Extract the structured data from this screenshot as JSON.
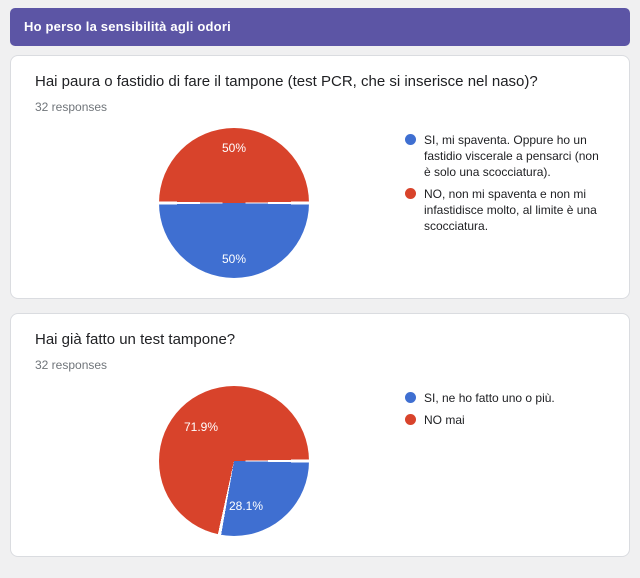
{
  "page": {
    "background_color": "#f0f0f1",
    "accent_color": "#5c55a5"
  },
  "header": {
    "title": "Ho perso la sensibilità agli odori"
  },
  "questions": [
    {
      "title": "Hai paura o fastidio di fare il tampone (test PCR, che si inserisce nel naso)?",
      "responses_label": "32 responses",
      "legend": [
        {
          "color": "#3f6fd1",
          "label": "SI, mi spaventa. Oppure ho un fastidio viscerale a pensarci (non è solo una scocciatura)."
        },
        {
          "color": "#d8432b",
          "label": "NO, non mi spaventa e non mi infastidisce molto, al limite è una scocciatura."
        }
      ]
    },
    {
      "title": "Hai già fatto un test tampone?",
      "responses_label": "32 responses",
      "legend": [
        {
          "color": "#3f6fd1",
          "label": "SI, ne ho fatto uno o più."
        },
        {
          "color": "#d8432b",
          "label": "NO mai"
        }
      ]
    }
  ],
  "chart_data": [
    {
      "type": "pie",
      "title": "Hai paura o fastidio di fare il tampone (test PCR, che si inserisce nel naso)?",
      "labels": [
        "SI, mi spaventa. Oppure ho un fastidio viscerale a pensarci (non è solo una scocciatura).",
        "NO, non mi spaventa e non mi infastidisce molto, al limite è una scocciatura."
      ],
      "values": [
        50,
        50
      ],
      "value_labels": [
        "50%",
        "50%"
      ],
      "colors": [
        "#3f6fd1",
        "#d8432b"
      ],
      "start_angle_deg": 90,
      "legend_position": "right"
    },
    {
      "type": "pie",
      "title": "Hai già fatto un test tampone?",
      "labels": [
        "SI, ne ho fatto uno o più.",
        "NO mai"
      ],
      "values": [
        28.1,
        71.9
      ],
      "value_labels": [
        "28.1%",
        "71.9%"
      ],
      "colors": [
        "#3f6fd1",
        "#d8432b"
      ],
      "start_angle_deg": 90,
      "legend_position": "right"
    }
  ]
}
